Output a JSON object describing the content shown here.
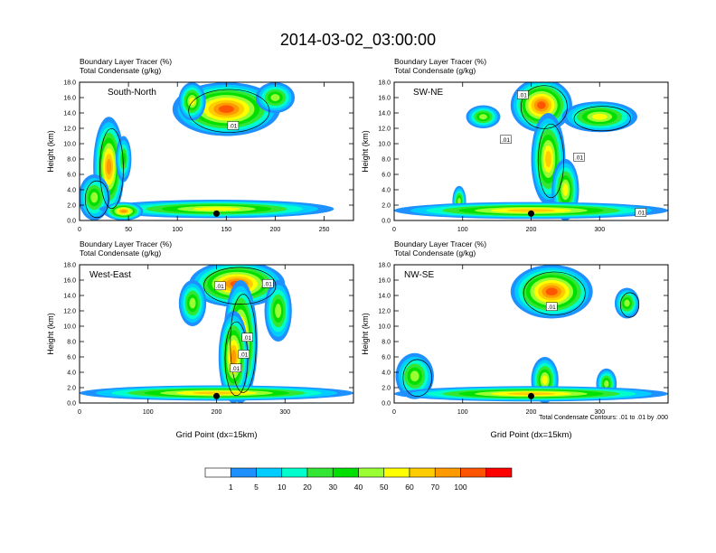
{
  "figure": {
    "title": "2014-03-02_03:00:00",
    "footnote": "Total Condensate Contours: .01 to .01 by .000"
  },
  "panel_header": {
    "line1_label": "Boundary Layer Tracer",
    "line1_unit": "(%)",
    "line2_label": "Total Condensate",
    "line2_unit": "(g/kg)"
  },
  "colorbar": {
    "colors": [
      "#ffffff",
      "#1e90ff",
      "#00ccff",
      "#00ffcc",
      "#33e633",
      "#00e000",
      "#99ff33",
      "#ffff00",
      "#ffcc00",
      "#ff9900",
      "#ff5500",
      "#ff0000"
    ],
    "labels": [
      "1",
      "5",
      "10",
      "20",
      "30",
      "40",
      "50",
      "60",
      "70",
      "100"
    ]
  },
  "chart_data": [
    {
      "type": "heatmap",
      "title": "South-North",
      "ylabel": "Height (km)",
      "xlabel": "",
      "xlim": [
        0,
        280
      ],
      "ylim": [
        0,
        18
      ],
      "xticks": [
        "0",
        "50",
        "100",
        "150",
        "200",
        "250"
      ],
      "xtick_values": [
        0,
        50,
        100,
        150,
        200,
        250
      ],
      "yticks": [
        "0.0",
        "2.0",
        "4.0",
        "6.0",
        "8.0",
        "10.0",
        "12.0",
        "14.0",
        "16.0",
        "18.0"
      ],
      "marker_x": 140,
      "contour_labels": [
        {
          "text": ".01",
          "x": 157,
          "y": 12.3
        }
      ]
    },
    {
      "type": "heatmap",
      "title": "SW-NE",
      "ylabel": "Height (km)",
      "xlabel": "",
      "xlim": [
        0,
        400
      ],
      "ylim": [
        0,
        18
      ],
      "xticks": [
        "0",
        "100",
        "200",
        "300"
      ],
      "xtick_values": [
        0,
        100,
        200,
        300
      ],
      "yticks": [
        "0.0",
        "2.0",
        "4.0",
        "6.0",
        "8.0",
        "10.0",
        "12.0",
        "14.0",
        "16.0",
        "18.0"
      ],
      "marker_x": 200,
      "contour_labels": [
        {
          "text": ".01",
          "x": 188,
          "y": 16.3
        },
        {
          "text": ".01",
          "x": 163,
          "y": 10.5
        },
        {
          "text": ".01",
          "x": 270,
          "y": 8.2
        },
        {
          "text": ".01",
          "x": 360,
          "y": 1.0
        }
      ]
    },
    {
      "type": "heatmap",
      "title": "West-East",
      "ylabel": "Height (km)",
      "xlabel": "Grid Point (dx=15km)",
      "xlim": [
        0,
        400
      ],
      "ylim": [
        0,
        18
      ],
      "xticks": [
        "0",
        "100",
        "200",
        "300"
      ],
      "xtick_values": [
        0,
        100,
        200,
        300
      ],
      "yticks": [
        "0.0",
        "2.0",
        "4.0",
        "6.0",
        "8.0",
        "10.0",
        "12.0",
        "14.0",
        "16.0",
        "18.0"
      ],
      "marker_x": 200,
      "contour_labels": [
        {
          "text": ".01",
          "x": 205,
          "y": 15.2
        },
        {
          "text": ".01",
          "x": 275,
          "y": 15.5
        },
        {
          "text": ".01",
          "x": 245,
          "y": 8.5
        },
        {
          "text": ".01",
          "x": 240,
          "y": 6.3
        },
        {
          "text": ".01",
          "x": 228,
          "y": 4.5
        }
      ]
    },
    {
      "type": "heatmap",
      "title": "NW-SE",
      "ylabel": "Height (km)",
      "xlabel": "Grid Point (dx=15km)",
      "xlim": [
        0,
        400
      ],
      "ylim": [
        0,
        18
      ],
      "xticks": [
        "0",
        "100",
        "200",
        "300"
      ],
      "xtick_values": [
        0,
        100,
        200,
        300
      ],
      "yticks": [
        "0.0",
        "2.0",
        "4.0",
        "6.0",
        "8.0",
        "10.0",
        "12.0",
        "14.0",
        "16.0",
        "18.0"
      ],
      "marker_x": 200,
      "contour_labels": [
        {
          "text": ".01",
          "x": 230,
          "y": 12.5
        }
      ]
    }
  ]
}
